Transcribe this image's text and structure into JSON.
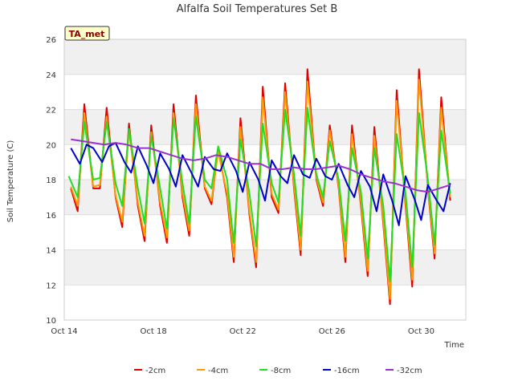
{
  "chart_data": {
    "type": "line",
    "title": "Alfalfa Soil Temperatures Set B",
    "xlabel": "Time",
    "ylabel": "Soil Temperature (C)",
    "badge": "TA_met",
    "x_tick_labels": [
      "Oct 14",
      "Oct 18",
      "Oct 22",
      "Oct 26",
      "Oct 30"
    ],
    "x_tick_days": [
      0,
      4,
      8,
      12,
      16
    ],
    "xlim_days": [
      0,
      18
    ],
    "ylim": [
      10,
      26
    ],
    "y_ticks": [
      10,
      12,
      14,
      16,
      18,
      20,
      22,
      24,
      26
    ],
    "grid": true,
    "legend_position": "bottom",
    "series": [
      {
        "name": "-2cm",
        "color": "#e00000",
        "x": [
          0.3,
          0.6,
          0.9,
          1.3,
          1.6,
          1.9,
          2.3,
          2.6,
          2.9,
          3.3,
          3.6,
          3.9,
          4.3,
          4.6,
          4.9,
          5.3,
          5.6,
          5.9,
          6.3,
          6.6,
          6.9,
          7.3,
          7.6,
          7.9,
          8.3,
          8.6,
          8.9,
          9.3,
          9.6,
          9.9,
          10.3,
          10.6,
          10.9,
          11.3,
          11.6,
          11.9,
          12.3,
          12.6,
          12.9,
          13.3,
          13.6,
          13.9,
          14.3,
          14.6,
          14.9,
          15.3,
          15.6,
          15.9,
          16.3,
          16.6,
          16.9,
          17.3
        ],
        "y": [
          17.5,
          16.2,
          22.3,
          17.5,
          17.5,
          22.1,
          17.0,
          15.3,
          21.2,
          16.5,
          14.5,
          21.1,
          16.5,
          14.4,
          22.3,
          17.0,
          14.8,
          22.8,
          17.5,
          16.6,
          19.8,
          17.0,
          13.3,
          21.5,
          16.0,
          13.0,
          23.3,
          17.0,
          16.1,
          23.5,
          17.5,
          13.7,
          24.3,
          18.0,
          16.5,
          21.1,
          17.5,
          13.3,
          21.1,
          16.5,
          12.5,
          21.0,
          15.5,
          10.9,
          23.1,
          16.5,
          11.9,
          24.3,
          17.5,
          13.5,
          22.7,
          16.8
        ]
      },
      {
        "name": "-4cm",
        "color": "#ff9900",
        "x": [
          0.3,
          0.6,
          0.9,
          1.3,
          1.6,
          1.9,
          2.3,
          2.6,
          2.9,
          3.3,
          3.6,
          3.9,
          4.3,
          4.6,
          4.9,
          5.3,
          5.6,
          5.9,
          6.3,
          6.6,
          6.9,
          7.3,
          7.6,
          7.9,
          8.3,
          8.6,
          8.9,
          9.3,
          9.6,
          9.9,
          10.3,
          10.6,
          10.9,
          11.3,
          11.6,
          11.9,
          12.3,
          12.6,
          12.9,
          13.3,
          13.6,
          13.9,
          14.3,
          14.6,
          14.9,
          15.3,
          15.6,
          15.9,
          16.3,
          16.6,
          16.9,
          17.3
        ],
        "y": [
          17.6,
          16.5,
          21.8,
          17.6,
          17.7,
          21.6,
          17.1,
          15.6,
          20.8,
          16.7,
          14.8,
          20.7,
          16.7,
          14.7,
          21.8,
          17.2,
          15.1,
          22.3,
          17.6,
          16.8,
          19.6,
          17.2,
          13.6,
          21.0,
          16.2,
          13.3,
          22.7,
          17.2,
          16.3,
          23.0,
          17.7,
          14.0,
          23.6,
          18.1,
          16.7,
          20.8,
          17.6,
          13.6,
          20.6,
          16.7,
          12.8,
          20.5,
          15.7,
          11.2,
          22.5,
          16.7,
          12.3,
          23.7,
          17.6,
          13.8,
          22.1,
          17.0
        ]
      },
      {
        "name": "-8cm",
        "color": "#22dd22",
        "x": [
          0.2,
          0.6,
          0.9,
          1.3,
          1.6,
          1.9,
          2.3,
          2.6,
          2.9,
          3.3,
          3.6,
          3.9,
          4.3,
          4.6,
          4.9,
          5.3,
          5.6,
          5.9,
          6.3,
          6.6,
          6.9,
          7.3,
          7.6,
          7.9,
          8.3,
          8.6,
          8.9,
          9.3,
          9.6,
          9.9,
          10.3,
          10.6,
          10.9,
          11.3,
          11.6,
          11.9,
          12.3,
          12.6,
          12.9,
          13.3,
          13.6,
          13.9,
          14.3,
          14.6,
          14.9,
          15.3,
          15.6,
          15.9,
          16.3,
          16.6,
          16.9,
          17.3
        ],
        "y": [
          18.2,
          17.0,
          21.3,
          18.0,
          18.1,
          21.3,
          17.8,
          16.5,
          20.9,
          17.5,
          15.5,
          20.5,
          17.5,
          15.2,
          21.5,
          17.8,
          15.5,
          21.6,
          18.0,
          17.5,
          19.9,
          18.0,
          14.4,
          20.3,
          17.2,
          14.2,
          21.2,
          17.8,
          16.7,
          22.0,
          18.3,
          14.8,
          22.1,
          18.3,
          17.0,
          20.2,
          18.0,
          14.5,
          19.8,
          17.3,
          13.5,
          19.8,
          16.5,
          12.2,
          20.6,
          17.2,
          13.0,
          21.8,
          18.0,
          14.3,
          20.8,
          17.2
        ]
      },
      {
        "name": "-16cm",
        "color": "#0000cc",
        "x": [
          0.3,
          0.7,
          1.0,
          1.3,
          1.7,
          2.0,
          2.3,
          2.7,
          3.0,
          3.3,
          3.7,
          4.0,
          4.3,
          4.7,
          5.0,
          5.3,
          5.7,
          6.0,
          6.3,
          6.7,
          7.0,
          7.3,
          7.7,
          8.0,
          8.3,
          8.7,
          9.0,
          9.3,
          9.7,
          10.0,
          10.3,
          10.7,
          11.0,
          11.3,
          11.7,
          12.0,
          12.3,
          12.7,
          13.0,
          13.3,
          13.7,
          14.0,
          14.3,
          14.7,
          15.0,
          15.3,
          15.7,
          16.0,
          16.3,
          16.7,
          17.0,
          17.3
        ],
        "y": [
          19.8,
          18.9,
          20.0,
          19.8,
          19.0,
          19.9,
          20.1,
          19.0,
          18.4,
          19.9,
          18.8,
          17.8,
          19.5,
          18.6,
          17.6,
          19.4,
          18.4,
          17.6,
          19.3,
          18.6,
          18.5,
          19.5,
          18.5,
          17.3,
          19.0,
          18.0,
          16.8,
          19.1,
          18.2,
          17.8,
          19.4,
          18.3,
          18.1,
          19.2,
          18.2,
          18.0,
          18.9,
          17.7,
          17.0,
          18.5,
          17.6,
          16.2,
          18.3,
          16.8,
          15.4,
          18.2,
          16.9,
          15.7,
          17.7,
          16.8,
          16.2,
          17.8
        ]
      },
      {
        "name": "-32cm",
        "color": "#9933cc",
        "x": [
          0.3,
          0.8,
          1.3,
          1.8,
          2.3,
          2.8,
          3.3,
          3.8,
          4.3,
          4.8,
          5.3,
          5.8,
          6.3,
          6.8,
          7.3,
          7.8,
          8.3,
          8.8,
          9.3,
          9.8,
          10.3,
          10.8,
          11.3,
          11.8,
          12.3,
          12.8,
          13.3,
          13.8,
          14.3,
          14.8,
          15.3,
          15.8,
          16.3,
          16.8,
          17.3
        ],
        "y": [
          20.3,
          20.2,
          20.1,
          20.0,
          20.1,
          20.0,
          19.8,
          19.8,
          19.6,
          19.4,
          19.2,
          19.1,
          19.2,
          19.4,
          19.3,
          19.1,
          18.9,
          18.9,
          18.6,
          18.6,
          18.7,
          18.6,
          18.6,
          18.7,
          18.8,
          18.6,
          18.3,
          18.1,
          17.9,
          17.8,
          17.6,
          17.4,
          17.3,
          17.5,
          17.7
        ]
      }
    ]
  }
}
